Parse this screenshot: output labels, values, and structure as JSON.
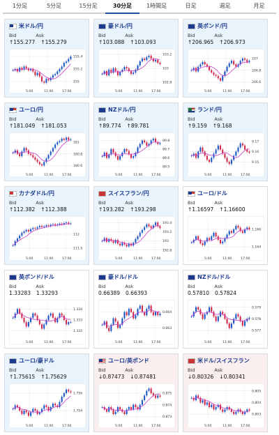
{
  "tabs": [
    {
      "label": "1分足",
      "active": false
    },
    {
      "label": "5分足",
      "active": false
    },
    {
      "label": "15分足",
      "active": false
    },
    {
      "label": "30分足",
      "active": true
    },
    {
      "label": "1時間足",
      "active": false
    },
    {
      "label": "日足",
      "active": false
    },
    {
      "label": "週足",
      "active": false
    },
    {
      "label": "月足",
      "active": false
    }
  ],
  "labels": {
    "bid": "Bid",
    "ask": "Ask"
  },
  "colors": {
    "up": "#e9f3fb",
    "down": "#fbeeee",
    "candle_up": "#1a55c4",
    "candle_down": "#d0284a",
    "ma": "#c83cc8",
    "grid": "#e5e5e5",
    "axis": "#888"
  },
  "cards": [
    {
      "flag": "jp",
      "pair": "米ドル/円",
      "bid": "↑155.277",
      "ask": "↑155.279",
      "trend": "up",
      "chart_data": {
        "type": "candlestick",
        "x_ticks": [
          "5:00",
          "11:00",
          "17:00"
        ],
        "y_ticks": [
          "155.4",
          "155.2",
          "155"
        ],
        "ylim": [
          154.92,
          155.48
        ],
        "close": [
          155.18,
          155.2,
          155.16,
          155.22,
          155.19,
          155.24,
          155.21,
          155.18,
          155.2,
          155.16,
          155.1,
          155.14,
          155.08,
          155.0,
          154.98,
          155.04,
          155.02,
          155.06,
          155.1,
          155.12,
          155.16,
          155.2,
          155.24,
          155.3,
          155.32,
          155.36,
          155.4
        ]
      }
    },
    {
      "flag": "au",
      "pair": "豪ドル/円",
      "bid": "↑103.088",
      "ask": "↑103.093",
      "trend": "up",
      "chart_data": {
        "type": "candlestick",
        "x_ticks": [
          "5:00",
          "11:00",
          "17:00"
        ],
        "y_ticks": [
          "103.2",
          "103",
          "102.8"
        ],
        "ylim": [
          102.74,
          103.24
        ],
        "close": [
          102.92,
          102.96,
          102.9,
          102.98,
          102.94,
          103.0,
          102.96,
          102.9,
          102.95,
          102.98,
          103.02,
          103.0,
          102.96,
          102.92,
          102.94,
          102.98,
          103.04,
          103.1,
          103.14,
          103.12,
          103.16,
          103.18,
          103.14,
          103.1,
          103.12,
          103.08,
          103.06
        ]
      }
    },
    {
      "flag": "gb",
      "pair": "英ポンド/円",
      "bid": "↑206.965",
      "ask": "↑206.973",
      "trend": "up",
      "chart_data": {
        "type": "candlestick",
        "x_ticks": [
          "5:00",
          "11:00",
          "17:00"
        ],
        "y_ticks": [
          "207",
          "206.8",
          "206.6"
        ],
        "ylim": [
          206.52,
          207.12
        ],
        "close": [
          206.8,
          206.84,
          206.78,
          206.86,
          206.9,
          206.94,
          206.9,
          206.86,
          206.8,
          206.76,
          206.72,
          206.7,
          206.66,
          206.62,
          206.7,
          206.78,
          206.86,
          206.92,
          206.96,
          206.9,
          206.86,
          206.9,
          206.96,
          207.0,
          206.98,
          206.94,
          206.96
        ]
      }
    },
    {
      "flag": "eu",
      "pair": "ユーロ/円",
      "bid": "↑181.049",
      "ask": "↑181.053",
      "trend": "up",
      "chart_data": {
        "type": "candlestick",
        "x_ticks": [
          "5:00",
          "11:00",
          "17:00"
        ],
        "y_ticks": [
          "181",
          "180.8",
          "180.6"
        ],
        "ylim": [
          180.52,
          181.12
        ],
        "close": [
          180.82,
          180.86,
          180.8,
          180.76,
          180.84,
          180.9,
          180.86,
          180.8,
          180.78,
          180.74,
          180.7,
          180.66,
          180.62,
          180.6,
          180.66,
          180.72,
          180.78,
          180.84,
          180.9,
          180.96,
          181.0,
          181.02,
          181.06,
          181.04,
          181.08,
          181.04,
          181.05
        ]
      }
    },
    {
      "flag": "nz",
      "pair": "NZドル/円",
      "bid": "↑89.774",
      "ask": "↑89.781",
      "trend": "up",
      "chart_data": {
        "type": "candlestick",
        "x_ticks": [
          "5:00",
          "11:00",
          "17:00"
        ],
        "y_ticks": [
          "89.8",
          "89.7",
          "89.6",
          "89.5"
        ],
        "ylim": [
          89.46,
          89.86
        ],
        "close": [
          89.62,
          89.66,
          89.6,
          89.64,
          89.7,
          89.66,
          89.62,
          89.58,
          89.62,
          89.66,
          89.7,
          89.68,
          89.64,
          89.6,
          89.62,
          89.66,
          89.72,
          89.76,
          89.8,
          89.78,
          89.74,
          89.76,
          89.8,
          89.82,
          89.78,
          89.76,
          89.77
        ]
      }
    },
    {
      "flag": "za",
      "pair": "ランド/円",
      "bid": "↑9.159",
      "ask": "↑9.168",
      "trend": "up",
      "chart_data": {
        "type": "candlestick",
        "x_ticks": [
          "5:00",
          "11:00",
          "17:00"
        ],
        "y_ticks": [
          "9.17",
          "9.16",
          "9.15"
        ],
        "ylim": [
          9.142,
          9.176
        ],
        "close": [
          9.156,
          9.158,
          9.154,
          9.16,
          9.164,
          9.16,
          9.156,
          9.152,
          9.15,
          9.154,
          9.158,
          9.162,
          9.166,
          9.162,
          9.158,
          9.154,
          9.15,
          9.148,
          9.152,
          9.156,
          9.16,
          9.164,
          9.168,
          9.166,
          9.162,
          9.16,
          9.159
        ]
      }
    },
    {
      "flag": "ca",
      "pair": "カナダドル/円",
      "bid": "↑112.382",
      "ask": "↑112.388",
      "trend": "up",
      "chart_data": {
        "type": "candlestick",
        "x_ticks": [
          "5:00",
          "11:00",
          "17:00"
        ],
        "y_ticks": [
          "112",
          "111.5"
        ],
        "ylim": [
          111.3,
          112.55
        ],
        "close": [
          111.6,
          111.75,
          111.85,
          111.95,
          112.05,
          112.1,
          112.15,
          112.1,
          112.18,
          112.22,
          112.2,
          112.25,
          112.3,
          112.26,
          112.28,
          112.32,
          112.3,
          112.34,
          112.36,
          112.32,
          112.35,
          112.38,
          112.36,
          112.4,
          112.42,
          112.38,
          112.38
        ]
      }
    },
    {
      "flag": "ch",
      "pair": "スイスフラン/円",
      "bid": "↑193.282",
      "ask": "↑193.298",
      "trend": "up",
      "chart_data": {
        "type": "candlestick",
        "x_ticks": [
          "5:00",
          "11:00",
          "17:00"
        ],
        "y_ticks": [
          "193.4",
          "193.2",
          "193",
          "192.8"
        ],
        "ylim": [
          192.72,
          193.48
        ],
        "close": [
          193.0,
          193.06,
          192.98,
          193.04,
          193.0,
          192.96,
          193.02,
          192.94,
          192.9,
          192.96,
          192.92,
          192.88,
          192.94,
          192.9,
          192.96,
          193.04,
          193.1,
          193.18,
          193.24,
          193.3,
          193.36,
          193.32,
          193.28,
          193.34,
          193.4,
          193.32,
          193.28
        ]
      }
    },
    {
      "flag": "eu",
      "pair": "ユーロ/ドル",
      "bid": "↑1.16597",
      "ask": "↑1.16600",
      "trend": "flat",
      "chart_data": {
        "type": "candlestick",
        "x_ticks": [
          "5:00",
          "11:00",
          "17:00"
        ],
        "y_ticks": [
          "1.166",
          "1.164"
        ],
        "ylim": [
          1.1632,
          1.1672
        ],
        "close": [
          1.1645,
          1.1648,
          1.1652,
          1.1648,
          1.1644,
          1.1642,
          1.1646,
          1.165,
          1.1648,
          1.1652,
          1.1656,
          1.1652,
          1.1648,
          1.1644,
          1.1646,
          1.165,
          1.1654,
          1.1658,
          1.1656,
          1.166,
          1.1664,
          1.1662,
          1.1658,
          1.1656,
          1.166,
          1.1662,
          1.166
        ]
      }
    },
    {
      "flag": "gb",
      "pair": "英ポンド/ドル",
      "bid": "1.33283",
      "ask": "1.33293",
      "trend": "flat",
      "chart_data": {
        "type": "candlestick",
        "x_ticks": [
          "5:00",
          "11:00",
          "17:00"
        ],
        "y_ticks": [
          "1.334",
          "1.333",
          "1.332"
        ],
        "ylim": [
          1.3314,
          1.3346
        ],
        "close": [
          1.3332,
          1.3336,
          1.334,
          1.3336,
          1.3332,
          1.3328,
          1.3324,
          1.3328,
          1.3332,
          1.3336,
          1.3334,
          1.333,
          1.3326,
          1.3322,
          1.3326,
          1.333,
          1.3334,
          1.3336,
          1.3332,
          1.3328,
          1.3332,
          1.3336,
          1.3334,
          1.333,
          1.3326,
          1.3328,
          1.3328
        ]
      }
    },
    {
      "flag": "au",
      "pair": "豪ドル/ドル",
      "bid": "0.66389",
      "ask": "0.66393",
      "trend": "flat",
      "chart_data": {
        "type": "candlestick",
        "x_ticks": [
          "5:00",
          "11:00",
          "17:00"
        ],
        "y_ticks": [
          "0.664",
          "0.663"
        ],
        "ylim": [
          0.6624,
          0.6646
        ],
        "close": [
          0.6632,
          0.6634,
          0.663,
          0.6628,
          0.6632,
          0.6636,
          0.6634,
          0.663,
          0.6632,
          0.6636,
          0.664,
          0.6638,
          0.6642,
          0.664,
          0.6636,
          0.6638,
          0.6642,
          0.6644,
          0.664,
          0.6638,
          0.6642,
          0.6644,
          0.664,
          0.6638,
          0.664,
          0.6638,
          0.6639
        ]
      }
    },
    {
      "flag": "nz",
      "pair": "NZドル/ドル",
      "bid": "0.57810",
      "ask": "0.57824",
      "trend": "flat",
      "chart_data": {
        "type": "candlestick",
        "x_ticks": [
          "5:00",
          "11:00",
          "17:00"
        ],
        "y_ticks": [
          "0.579",
          "0.578",
          "0.577"
        ],
        "ylim": [
          0.5764,
          0.5794
        ],
        "close": [
          0.5782,
          0.5786,
          0.579,
          0.5788,
          0.5784,
          0.578,
          0.5784,
          0.5786,
          0.579,
          0.5786,
          0.5782,
          0.5778,
          0.5782,
          0.5786,
          0.5784,
          0.578,
          0.5776,
          0.5772,
          0.5776,
          0.578,
          0.5784,
          0.5782,
          0.5778,
          0.5774,
          0.5778,
          0.578,
          0.5781
        ]
      }
    },
    {
      "flag": "nz",
      "pair": "ユーロ/豪ドル",
      "bid": "↑1.75615",
      "ask": "↑1.75629",
      "trend": "up",
      "chart_data": {
        "type": "candlestick",
        "x_ticks": [
          "5:00",
          "11:00",
          "17:00"
        ],
        "y_ticks": [
          "1.756",
          "1.754"
        ],
        "ylim": [
          1.7528,
          1.7568
        ],
        "close": [
          1.7542,
          1.7546,
          1.7544,
          1.754,
          1.7536,
          1.754,
          1.7538,
          1.7534,
          1.7538,
          1.7542,
          1.754,
          1.7536,
          1.7538,
          1.7542,
          1.7546,
          1.7544,
          1.754,
          1.7544,
          1.7548,
          1.7546,
          1.7544,
          1.755,
          1.7556,
          1.756,
          1.7564,
          1.7562,
          1.7561
        ]
      }
    },
    {
      "flag": "us",
      "pair": "ユーロ/英ポンド",
      "bid": "↓0.87473",
      "ask": "↓0.87481",
      "trend": "down",
      "chart_data": {
        "type": "candlestick",
        "x_ticks": [
          "5:00",
          "11:00",
          "17:00"
        ],
        "y_ticks": [
          "0.875",
          "0.874",
          "0.873"
        ],
        "ylim": [
          0.8726,
          0.8756
        ],
        "close": [
          0.8738,
          0.8736,
          0.8734,
          0.8738,
          0.8736,
          0.8732,
          0.8734,
          0.8738,
          0.8736,
          0.8734,
          0.8732,
          0.8736,
          0.8738,
          0.8736,
          0.874,
          0.8738,
          0.8736,
          0.874,
          0.8744,
          0.8748,
          0.8752,
          0.8754,
          0.875,
          0.8748,
          0.8746,
          0.8748,
          0.8747
        ]
      }
    },
    {
      "flag": "ch",
      "pair": "米ドル/スイスフラン",
      "bid": "↓0.80326",
      "ask": "↓0.80341",
      "trend": "down",
      "chart_data": {
        "type": "candlestick",
        "x_ticks": [
          "5:00",
          "11:00",
          "17:00"
        ],
        "y_ticks": [
          "0.805",
          "0.804",
          "0.803"
        ],
        "ylim": [
          0.8024,
          0.8054
        ],
        "close": [
          0.8044,
          0.8042,
          0.8046,
          0.8044,
          0.804,
          0.8042,
          0.8038,
          0.804,
          0.8036,
          0.8038,
          0.8034,
          0.8036,
          0.8038,
          0.8034,
          0.8032,
          0.8034,
          0.8036,
          0.8034,
          0.8032,
          0.803,
          0.8032,
          0.8034,
          0.8032,
          0.803,
          0.8032,
          0.8034,
          0.8033
        ]
      }
    }
  ]
}
